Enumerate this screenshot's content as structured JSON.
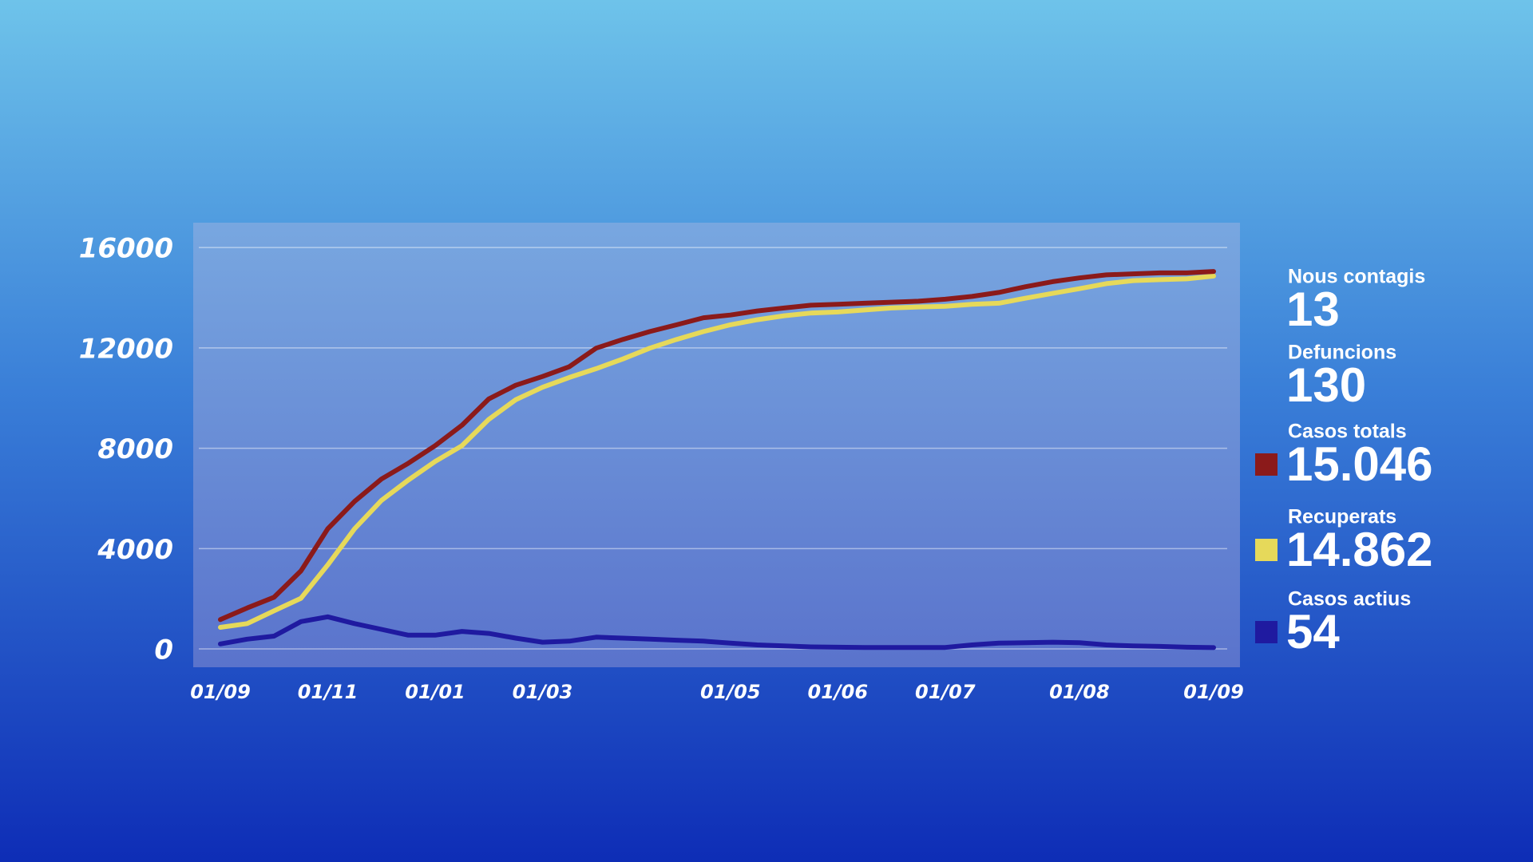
{
  "chart_data": {
    "type": "line",
    "categories": [
      "01/09",
      null,
      null,
      null,
      "01/11",
      null,
      null,
      null,
      "01/01",
      null,
      null,
      null,
      "01/03",
      null,
      null,
      null,
      null,
      null,
      null,
      "01/05",
      null,
      null,
      null,
      "01/06",
      null,
      null,
      null,
      "01/07",
      null,
      null,
      null,
      null,
      "01/08",
      null,
      null,
      null,
      null,
      "01/09"
    ],
    "series": [
      {
        "name": "Casos totals",
        "total": "15.046",
        "color": "#8b1a1a",
        "values": [
          1170,
          1635,
          2060,
          3110,
          4790,
          5880,
          6770,
          7400,
          8100,
          8915,
          9965,
          10510,
          10860,
          11250,
          11990,
          12340,
          12650,
          12920,
          13200,
          13310,
          13470,
          13590,
          13700,
          13740,
          13780,
          13820,
          13860,
          13940,
          14050,
          14210,
          14440,
          14640,
          14790,
          14910,
          14950,
          14990,
          14990,
          15046
        ]
      },
      {
        "name": "Recuperats",
        "total": "14.862",
        "color": "#e6d95a",
        "values": [
          860,
          1010,
          1520,
          2020,
          3350,
          4790,
          5920,
          6730,
          7470,
          8100,
          9150,
          9930,
          10430,
          10820,
          11170,
          11560,
          11990,
          12340,
          12650,
          12920,
          13120,
          13280,
          13390,
          13430,
          13510,
          13590,
          13630,
          13660,
          13740,
          13780,
          13980,
          14170,
          14360,
          14560,
          14680,
          14720,
          14750,
          14862
        ]
      },
      {
        "name": "Casos actius",
        "total": "54",
        "color": "#1f1aa0",
        "values": [
          200,
          390,
          510,
          1090,
          1280,
          1010,
          780,
          550,
          550,
          700,
          620,
          430,
          270,
          310,
          470,
          430,
          390,
          350,
          310,
          230,
          160,
          120,
          80,
          70,
          60,
          60,
          60,
          60,
          160,
          230,
          250,
          270,
          250,
          160,
          120,
          100,
          70,
          54
        ]
      }
    ],
    "stats": [
      {
        "label": "Nous contagis",
        "value": "13"
      },
      {
        "label": "Defuncions",
        "value": "130"
      }
    ],
    "ylim": [
      -730,
      16990
    ],
    "yticks": [
      0,
      4000,
      8000,
      12000,
      16000
    ],
    "grid": true
  }
}
